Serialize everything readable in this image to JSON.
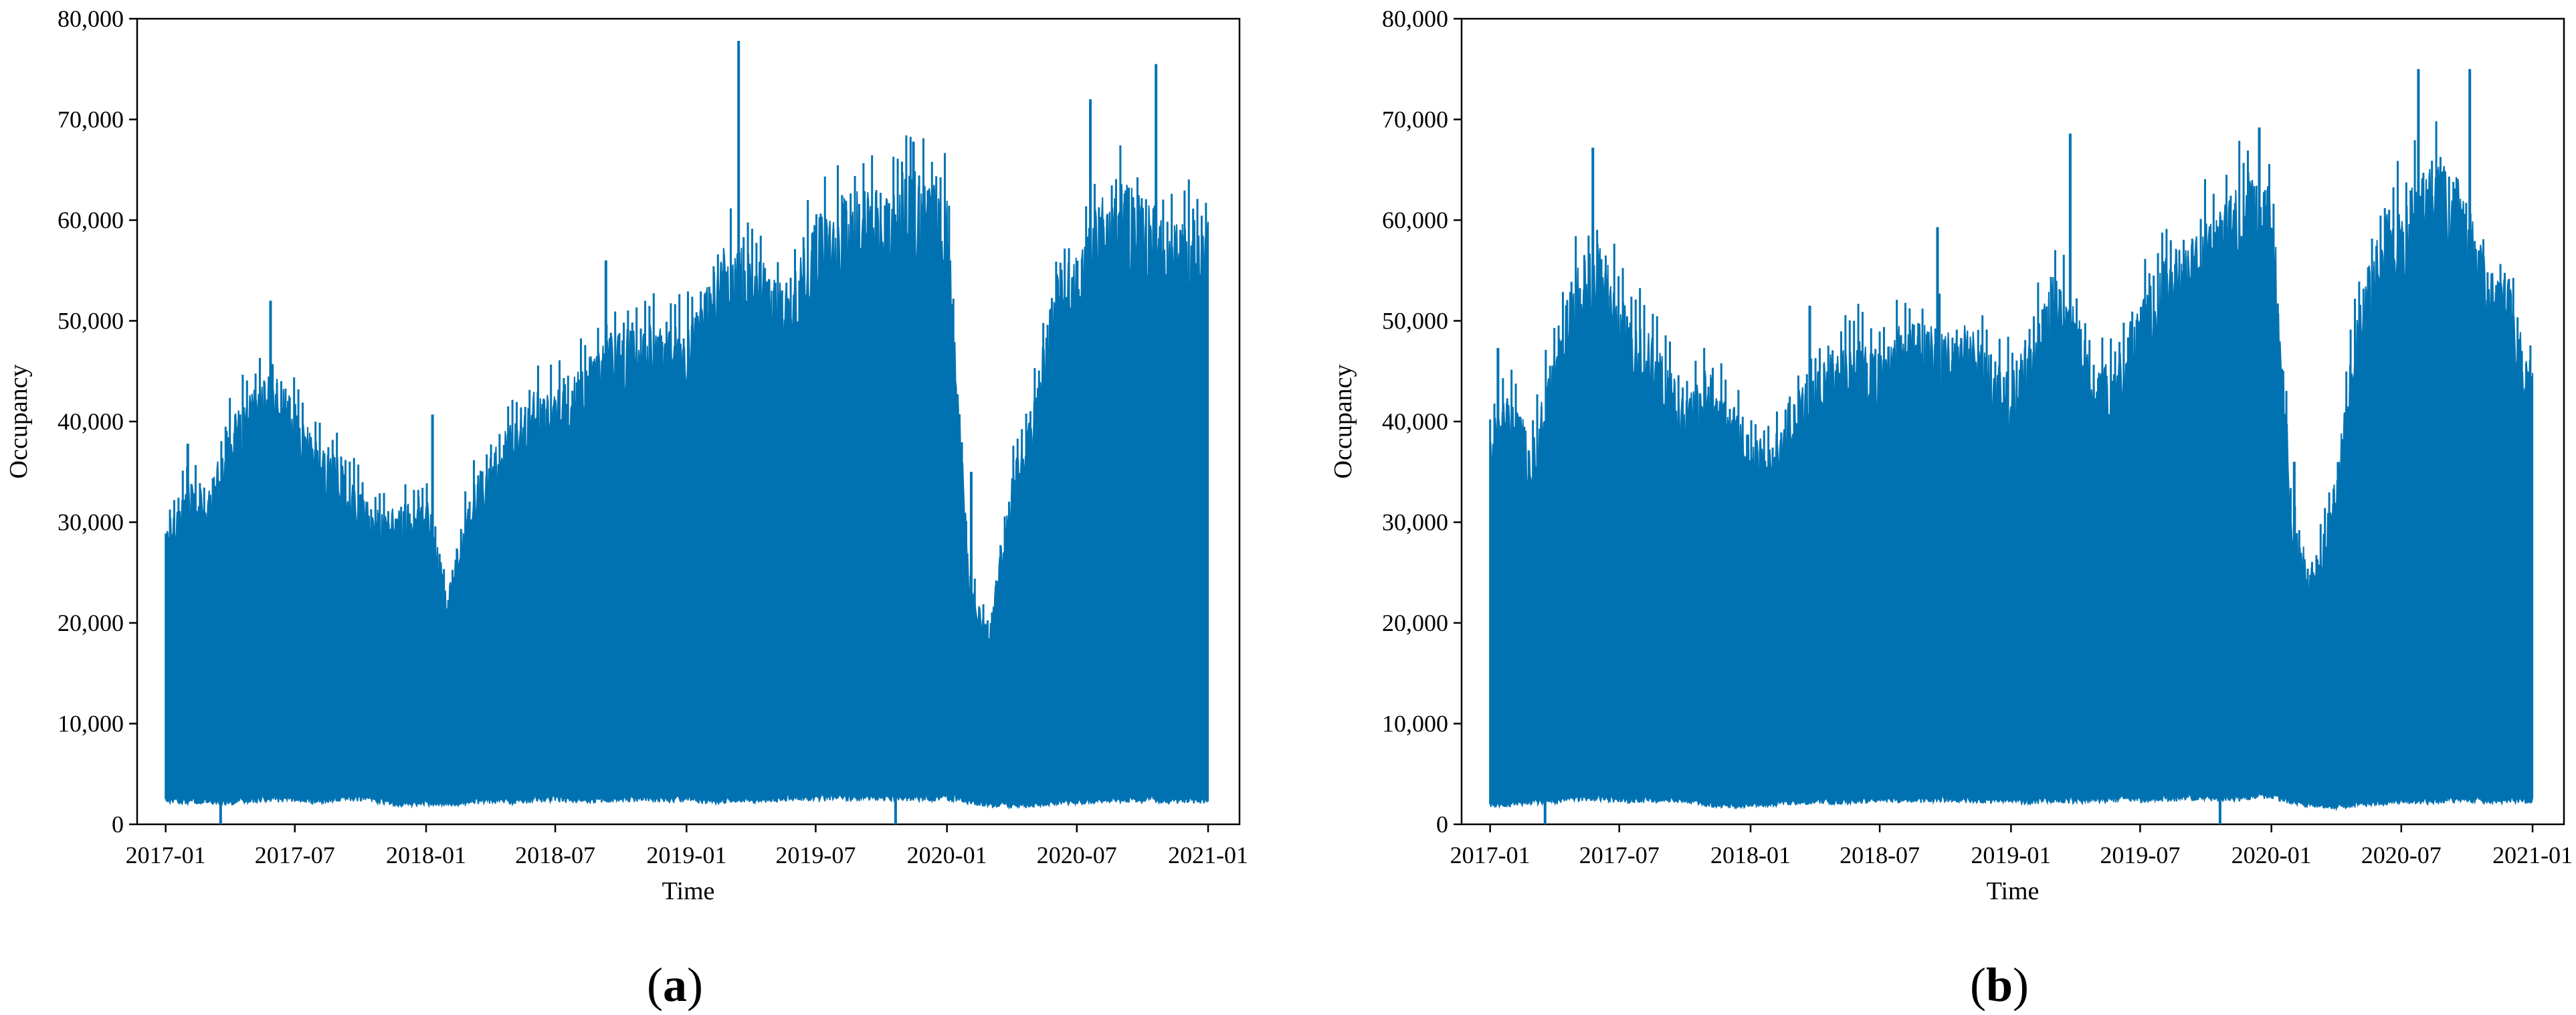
{
  "colors": {
    "series": "#0072B2",
    "axis": "#000000",
    "background": "#ffffff"
  },
  "chart_data": [
    {
      "type": "area",
      "panel_label": "(a)",
      "xlabel": "Time",
      "ylabel": "Occupancy",
      "xlim": [
        "2016-11-22",
        "2021-02-14"
      ],
      "ylim": [
        0,
        80000
      ],
      "grid": false,
      "x_tick_labels": [
        "2017-01",
        "2017-07",
        "2018-01",
        "2018-07",
        "2019-01",
        "2019-07",
        "2020-01",
        "2020-07",
        "2021-01"
      ],
      "y_tick_labels": [
        "0",
        "10,000",
        "20,000",
        "30,000",
        "40,000",
        "50,000",
        "60,000",
        "70,000",
        "80,000"
      ],
      "x_dates": [
        "2017-01-01",
        "2017-02-01",
        "2017-03-01",
        "2017-04-01",
        "2017-05-01",
        "2017-06-01",
        "2017-07-01",
        "2017-08-01",
        "2017-09-01",
        "2017-10-01",
        "2017-11-01",
        "2017-12-01",
        "2018-01-01",
        "2018-02-01",
        "2018-03-01",
        "2018-04-01",
        "2018-05-01",
        "2018-06-01",
        "2018-07-01",
        "2018-08-01",
        "2018-09-01",
        "2018-10-01",
        "2018-11-01",
        "2018-12-01",
        "2019-01-01",
        "2019-02-01",
        "2019-03-01",
        "2019-04-01",
        "2019-05-01",
        "2019-06-01",
        "2019-07-01",
        "2019-08-01",
        "2019-09-01",
        "2019-10-01",
        "2019-11-01",
        "2019-12-01",
        "2020-01-01",
        "2020-02-01",
        "2020-03-01",
        "2020-04-01",
        "2020-05-01",
        "2020-06-01",
        "2020-07-01",
        "2020-08-01",
        "2020-09-01",
        "2020-10-01",
        "2020-11-01",
        "2020-12-01",
        "2021-01-01"
      ],
      "daily_max": [
        30000,
        34000,
        33000,
        40000,
        43000,
        45000,
        42000,
        38000,
        37000,
        33000,
        31000,
        32000,
        33000,
        23000,
        33000,
        37000,
        40000,
        43000,
        43000,
        45000,
        48000,
        49000,
        50000,
        50000,
        50000,
        55000,
        58000,
        57000,
        55000,
        55000,
        60000,
        62000,
        63000,
        63000,
        65000,
        64000,
        63000,
        25000,
        20000,
        35000,
        42000,
        55000,
        57000,
        62000,
        64000,
        63000,
        60000,
        60000,
        60000
      ],
      "daily_min": [
        2500,
        2300,
        2400,
        2200,
        2500,
        2600,
        2500,
        2400,
        2600,
        2700,
        2300,
        2000,
        2200,
        2000,
        2300,
        2400,
        2300,
        2500,
        2600,
        2500,
        2500,
        2600,
        2600,
        2500,
        2700,
        2300,
        2500,
        2400,
        2500,
        2600,
        2700,
        2600,
        2700,
        2700,
        2700,
        2600,
        2800,
        2300,
        2000,
        1900,
        2000,
        2200,
        2300,
        2400,
        2500,
        2500,
        2400,
        2400,
        2400
      ],
      "spikes": [
        {
          "date": "2017-02-01",
          "value": 37800
        },
        {
          "date": "2017-05-28",
          "value": 52000
        },
        {
          "date": "2018-01-10",
          "value": 40700
        },
        {
          "date": "2018-09-10",
          "value": 56000
        },
        {
          "date": "2019-03-15",
          "value": 77800
        },
        {
          "date": "2019-11-15",
          "value": 67800
        },
        {
          "date": "2020-02-04",
          "value": 35000
        },
        {
          "date": "2020-07-20",
          "value": 72000
        },
        {
          "date": "2020-10-20",
          "value": 75500
        }
      ],
      "dips": [
        {
          "date": "2017-03-19",
          "value": 0
        },
        {
          "date": "2019-10-21",
          "value": 0
        }
      ]
    },
    {
      "type": "area",
      "panel_label": "(b)",
      "xlabel": "Time",
      "ylabel": "Occupancy",
      "xlim": [
        "2016-11-22",
        "2021-02-14"
      ],
      "ylim": [
        0,
        80000
      ],
      "grid": false,
      "x_tick_labels": [
        "2017-01",
        "2017-07",
        "2018-01",
        "2018-07",
        "2019-01",
        "2019-07",
        "2020-01",
        "2020-07",
        "2021-01"
      ],
      "y_tick_labels": [
        "0",
        "10,000",
        "20,000",
        "30,000",
        "40,000",
        "50,000",
        "60,000",
        "70,000",
        "80,000"
      ],
      "x_dates": [
        "2017-01-01",
        "2017-02-01",
        "2017-03-01",
        "2017-04-01",
        "2017-05-01",
        "2017-06-01",
        "2017-07-01",
        "2017-08-01",
        "2017-09-01",
        "2017-10-01",
        "2017-11-01",
        "2017-12-01",
        "2018-01-01",
        "2018-02-01",
        "2018-03-01",
        "2018-04-01",
        "2018-05-01",
        "2018-06-01",
        "2018-07-01",
        "2018-08-01",
        "2018-09-01",
        "2018-10-01",
        "2018-11-01",
        "2018-12-01",
        "2019-01-01",
        "2019-02-01",
        "2019-03-01",
        "2019-04-01",
        "2019-05-01",
        "2019-06-01",
        "2019-07-01",
        "2019-08-01",
        "2019-09-01",
        "2019-10-01",
        "2019-11-01",
        "2019-12-01",
        "2020-01-01",
        "2020-02-01",
        "2020-03-01",
        "2020-04-01",
        "2020-05-01",
        "2020-06-01",
        "2020-07-01",
        "2020-08-01",
        "2020-09-01",
        "2020-10-01",
        "2020-11-01",
        "2020-12-01",
        "2021-01-01"
      ],
      "daily_max": [
        40000,
        43000,
        38000,
        48000,
        55000,
        58000,
        53000,
        50000,
        47000,
        42000,
        46000,
        42000,
        39000,
        38000,
        43000,
        45000,
        48000,
        49000,
        47000,
        50000,
        50000,
        49000,
        50000,
        47000,
        45000,
        49000,
        55000,
        52000,
        45000,
        47000,
        53000,
        56000,
        58000,
        60000,
        62000,
        65000,
        64000,
        30000,
        25000,
        35000,
        52000,
        60000,
        62000,
        65000,
        66000,
        63000,
        55000,
        54000,
        45000
      ],
      "daily_min": [
        2000,
        2000,
        2300,
        2400,
        2600,
        2700,
        2500,
        2500,
        2400,
        2500,
        2000,
        1800,
        2000,
        2100,
        2300,
        2300,
        2300,
        2400,
        2500,
        2500,
        2500,
        2600,
        2500,
        2400,
        2400,
        2300,
        2400,
        2400,
        2500,
        2600,
        2500,
        2600,
        2700,
        2700,
        2600,
        2700,
        3000,
        2200,
        1900,
        1800,
        2000,
        2200,
        2300,
        2300,
        2500,
        2500,
        2400,
        2400,
        2400
      ],
      "spikes": [
        {
          "date": "2017-01-12",
          "value": 47300
        },
        {
          "date": "2017-05-25",
          "value": 67200
        },
        {
          "date": "2018-03-25",
          "value": 51500
        },
        {
          "date": "2018-09-20",
          "value": 59300
        },
        {
          "date": "2019-03-25",
          "value": 68600
        },
        {
          "date": "2019-12-15",
          "value": 69200
        },
        {
          "date": "2020-02-02",
          "value": 36000
        },
        {
          "date": "2020-07-25",
          "value": 75000
        },
        {
          "date": "2020-10-05",
          "value": 75000
        }
      ],
      "dips": [
        {
          "date": "2017-03-19",
          "value": 0
        },
        {
          "date": "2019-10-21",
          "value": 0
        }
      ]
    }
  ]
}
